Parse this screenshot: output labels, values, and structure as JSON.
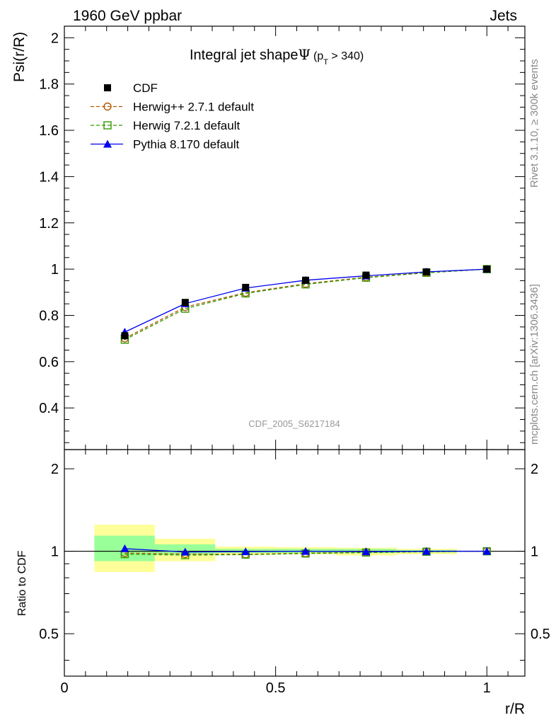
{
  "header": {
    "left": "1960 GeV ppbar",
    "right": "Jets"
  },
  "side_labels": {
    "rivet": "Rivet 3.1.10, ≥ 300k events",
    "mcplots": "mcplots.cern.ch [arXiv:1306.3436]"
  },
  "chart_data": {
    "type": "line",
    "title": "Integral jet shape",
    "title_symbol": "Ψ",
    "title_suffix": "(p",
    "title_sub": "T",
    "title_tail": " > 340)",
    "analysis_id": "CDF_2005_S6217184",
    "xlabel": "r/R",
    "ylabel": "Psi(r/R)",
    "ratio_ylabel": "Ratio to CDF",
    "xlim": [
      0,
      1.09
    ],
    "ylim": [
      0.22,
      2.05
    ],
    "ratio_ylim": [
      0.35,
      2.35
    ],
    "ratio_scale": "log",
    "x_ticks": [
      "0",
      "0.5",
      "1"
    ],
    "y_ticks": [
      "0.4",
      "0.6",
      "0.8",
      "1",
      "1.2",
      "1.4",
      "1.6",
      "1.8",
      "2"
    ],
    "ratio_ticks": [
      "0.5",
      "1",
      "2"
    ],
    "x": [
      0.143,
      0.286,
      0.429,
      0.571,
      0.714,
      0.857,
      1.0
    ],
    "bin_edges": [
      0.071,
      0.214,
      0.357,
      0.5,
      0.643,
      0.786,
      0.929,
      1.0
    ],
    "legend_position": "top-left",
    "series": [
      {
        "name": "CDF",
        "values": [
          0.712,
          0.856,
          0.921,
          0.952,
          0.974,
          0.988,
          1.0
        ],
        "errors": [
          0.018,
          0.012,
          0.01,
          0.008,
          0.006,
          0.004,
          0.001
        ],
        "color": "#000000",
        "marker": "square-filled",
        "line": "none"
      },
      {
        "name": "Herwig++ 2.7.1 default",
        "values": [
          0.701,
          0.836,
          0.898,
          0.937,
          0.965,
          0.985,
          1.0
        ],
        "color": "#b35900",
        "marker": "circle-open",
        "line": "dashed"
      },
      {
        "name": "Herwig 7.2.1 default",
        "values": [
          0.695,
          0.829,
          0.895,
          0.934,
          0.963,
          0.984,
          1.0
        ],
        "color": "#339900",
        "marker": "square-open",
        "line": "dashed"
      },
      {
        "name": "Pythia 8.170 default",
        "values": [
          0.728,
          0.851,
          0.918,
          0.952,
          0.971,
          0.988,
          1.0
        ],
        "color": "#0000ee",
        "marker": "triangle-filled",
        "line": "solid"
      }
    ],
    "ratio_series": [
      {
        "name": "Herwig++ 2.7.1 default",
        "values": [
          0.985,
          0.977,
          0.975,
          0.984,
          0.991,
          0.997,
          1.0
        ]
      },
      {
        "name": "Herwig 7.2.1 default",
        "values": [
          0.976,
          0.968,
          0.972,
          0.981,
          0.989,
          0.996,
          1.0
        ]
      },
      {
        "name": "Pythia 8.170 default",
        "values": [
          1.022,
          0.994,
          0.997,
          1.0,
          0.997,
          1.0,
          1.0
        ]
      }
    ],
    "ratio_bands": {
      "yellow_color": "#ffff99",
      "green_color": "#99ff99",
      "yellow": [
        [
          0.84,
          1.25
        ],
        [
          0.92,
          1.11
        ],
        [
          0.97,
          1.04
        ],
        [
          0.975,
          1.035
        ],
        [
          0.965,
          1.03
        ],
        [
          0.975,
          1.02
        ],
        [
          0.995,
          1.005
        ]
      ],
      "green": [
        [
          0.92,
          1.14
        ],
        [
          0.97,
          1.06
        ],
        [
          0.985,
          1.02
        ],
        [
          0.985,
          1.02
        ],
        [
          0.985,
          1.02
        ],
        [
          0.99,
          1.01
        ],
        [
          0.998,
          1.002
        ]
      ]
    }
  }
}
